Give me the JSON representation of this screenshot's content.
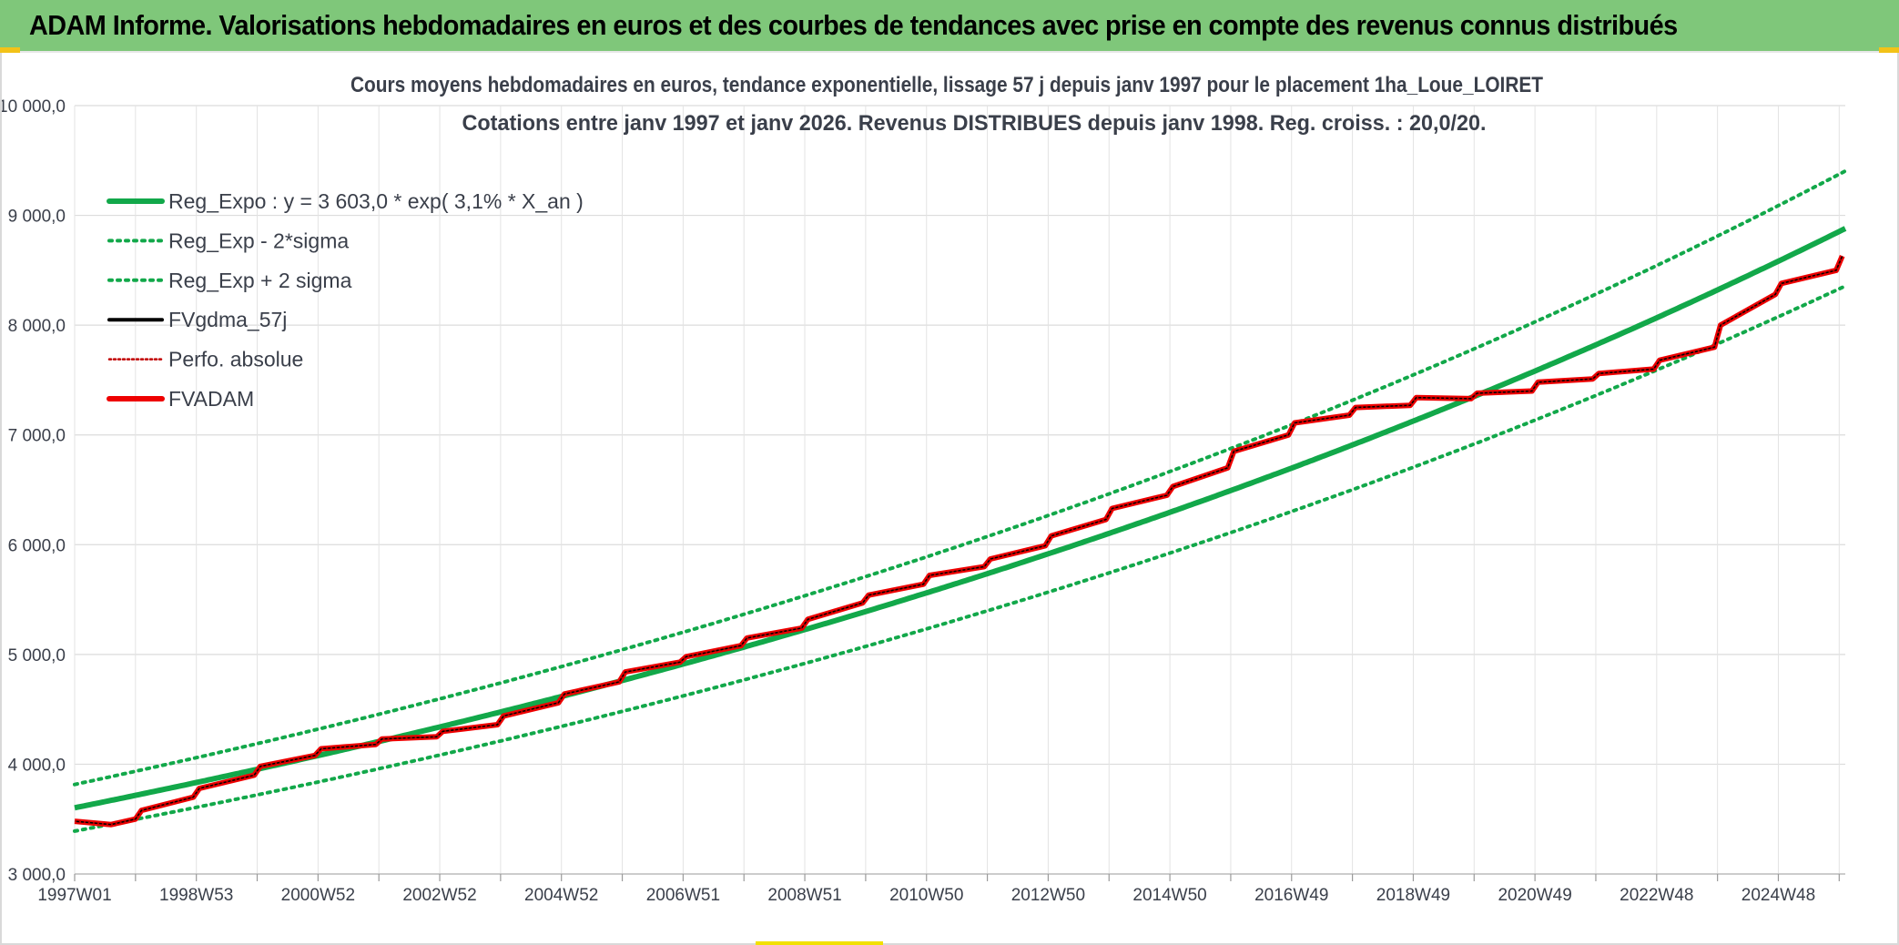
{
  "banner": {
    "title": "ADAM Informe. Valorisations hebdomadaires en euros et des courbes de tendances avec prise en compte des revenus connus distribués"
  },
  "chart_data": {
    "type": "line",
    "title_line1": "Cours moyens hebdomadaires en euros, tendance exponentielle, lissage 57 j depuis janv 1997 pour le placement 1ha_Loue_LOIRET",
    "title_line2": "Cotations entre janv 1997 et janv 2026. Revenus DISTRIBUES depuis janv 1998. Reg. croiss. : 20,0/20.",
    "xlabel": "",
    "ylabel": "",
    "ylim": [
      3000,
      10000
    ],
    "xlim": [
      1997.0,
      2026.1
    ],
    "y_ticks": [
      3000,
      4000,
      5000,
      6000,
      7000,
      8000,
      9000,
      10000
    ],
    "y_tick_labels": [
      "3 000,0",
      "4 000,0",
      "5 000,0",
      "6 000,0",
      "7 000,0",
      "8 000,0",
      "9 000,0",
      "10 000,0"
    ],
    "x_tick_labels": [
      "1997W01",
      "1998W53",
      "2000W52",
      "2002W52",
      "2004W52",
      "2006W51",
      "2008W51",
      "2010W50",
      "2012W50",
      "2014W50",
      "2016W49",
      "2018W49",
      "2020W49",
      "2022W48",
      "2024W48"
    ],
    "x_tick_positions": [
      1997.0,
      1999.0,
      2001.0,
      2003.0,
      2005.0,
      2007.0,
      2009.0,
      2011.0,
      2013.0,
      2015.0,
      2017.0,
      2019.0,
      2021.0,
      2023.0,
      2025.0
    ],
    "grid": true,
    "legend_position": "top-left",
    "regression": {
      "a": 3603.0,
      "rate": 0.031
    },
    "band": {
      "lower_factor": 0.941,
      "upper_factor": 1.059
    },
    "series": [
      {
        "name": "Reg_Expo : y = 3 603,0 * exp( 3,1% *  X_an )",
        "color": "#12a84a",
        "style": "solid-thick"
      },
      {
        "name": "Reg_Exp - 2*sigma",
        "color": "#12a84a",
        "style": "dotted"
      },
      {
        "name": "Reg_Exp + 2 sigma",
        "color": "#12a84a",
        "style": "dotted"
      },
      {
        "name": "FVgdma_57j",
        "color": "#000000",
        "style": "solid"
      },
      {
        "name": "Perfo. absolue",
        "color": "#c00000",
        "style": "dotted"
      },
      {
        "name": "FVADAM",
        "color": "#ee0000",
        "style": "solid-thick",
        "x": [
          1997.0,
          1997.4,
          1997.6,
          1998.0,
          1998.1,
          1998.95,
          1999.05,
          1999.95,
          2000.05,
          2000.95,
          2001.05,
          2001.95,
          2002.05,
          2002.95,
          2003.05,
          2003.95,
          2004.05,
          2004.95,
          2005.05,
          2005.95,
          2006.05,
          2006.95,
          2007.05,
          2007.95,
          2008.05,
          2008.95,
          2009.05,
          2009.95,
          2010.05,
          2010.95,
          2011.05,
          2011.95,
          2012.05,
          2012.95,
          2013.05,
          2013.95,
          2014.05,
          2014.95,
          2015.05,
          2015.95,
          2016.05,
          2016.95,
          2017.05,
          2017.95,
          2018.05,
          2018.95,
          2019.05,
          2019.95,
          2020.05,
          2020.95,
          2021.05,
          2021.95,
          2022.05,
          2022.95,
          2023.05,
          2023.95,
          2024.05,
          2024.95,
          2025.05,
          2025.95,
          2026.05
        ],
        "y": [
          3480,
          3460,
          3450,
          3500,
          3580,
          3700,
          3780,
          3900,
          3980,
          4080,
          4140,
          4180,
          4230,
          4250,
          4300,
          4360,
          4440,
          4560,
          4640,
          4750,
          4840,
          4930,
          4980,
          5080,
          5150,
          5240,
          5320,
          5470,
          5540,
          5640,
          5720,
          5800,
          5870,
          5990,
          6080,
          6230,
          6330,
          6450,
          6530,
          6700,
          6850,
          7000,
          7110,
          7180,
          7250,
          7270,
          7340,
          7330,
          7380,
          7400,
          7480,
          7510,
          7560,
          7600,
          7680,
          7800,
          8000,
          8280,
          8380,
          8500,
          8630
        ]
      }
    ]
  }
}
